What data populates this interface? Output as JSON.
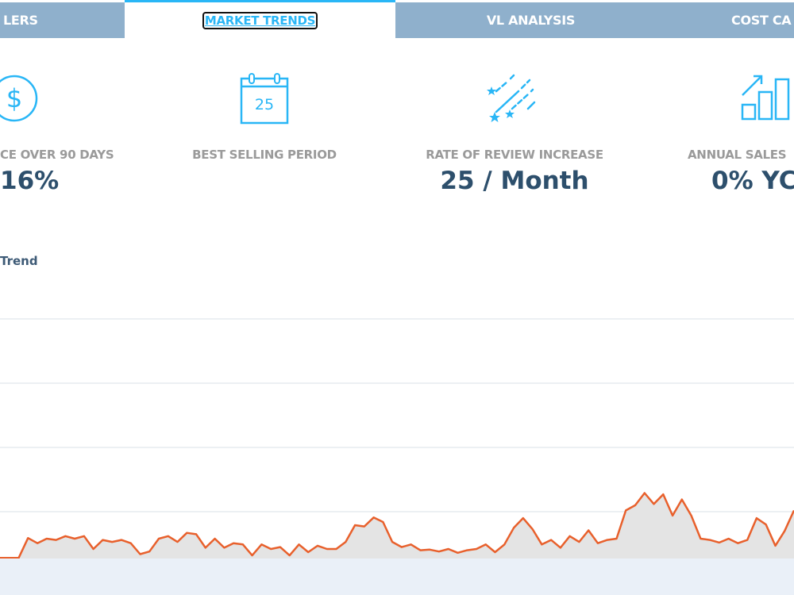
{
  "tabs": [
    {
      "label": "LERS",
      "active": false
    },
    {
      "label": "MARKET TRENDS",
      "active": true
    },
    {
      "label": "VL ANALYSIS",
      "active": false
    },
    {
      "label": "COST CA",
      "active": false
    }
  ],
  "stats": [
    {
      "icon": "dollar-circle-icon",
      "label": "CE OVER 90 DAYS",
      "value": "16%"
    },
    {
      "icon": "calendar-icon",
      "icon_text": "25",
      "label": "BEST SELLING PERIOD",
      "value": ""
    },
    {
      "icon": "shooting-stars-icon",
      "label": "RATE OF REVIEW INCREASE",
      "value": "25 / Month"
    },
    {
      "icon": "bar-growth-icon",
      "label": "ANNUAL SALES",
      "value": "0% YC"
    }
  ],
  "colors": {
    "accent": "#29b6f6",
    "tab_bg": "#8fb0cc",
    "line": "#e8602c",
    "area": "#e4e4e4",
    "value_text": "#2d4f6c"
  },
  "chart_data": {
    "type": "area",
    "title": "Trend",
    "grid": true,
    "ylim": [
      0,
      4.5
    ],
    "values": [
      0.28,
      0.28,
      0.28,
      0.59,
      0.51,
      0.58,
      0.56,
      0.62,
      0.58,
      0.62,
      0.42,
      0.56,
      0.53,
      0.56,
      0.51,
      0.34,
      0.38,
      0.58,
      0.62,
      0.53,
      0.67,
      0.65,
      0.44,
      0.58,
      0.44,
      0.51,
      0.49,
      0.32,
      0.49,
      0.42,
      0.45,
      0.32,
      0.49,
      0.37,
      0.47,
      0.42,
      0.42,
      0.53,
      0.79,
      0.77,
      0.91,
      0.84,
      0.53,
      0.45,
      0.49,
      0.4,
      0.41,
      0.38,
      0.42,
      0.36,
      0.4,
      0.42,
      0.49,
      0.37,
      0.49,
      0.75,
      0.9,
      0.73,
      0.49,
      0.56,
      0.44,
      0.62,
      0.53,
      0.71,
      0.51,
      0.56,
      0.58,
      1.02,
      1.1,
      1.29,
      1.12,
      1.27,
      0.94,
      1.19,
      0.94,
      0.58,
      0.56,
      0.52,
      0.58,
      0.51,
      0.56,
      0.9,
      0.8,
      0.47,
      0.7,
      1.02
    ]
  }
}
